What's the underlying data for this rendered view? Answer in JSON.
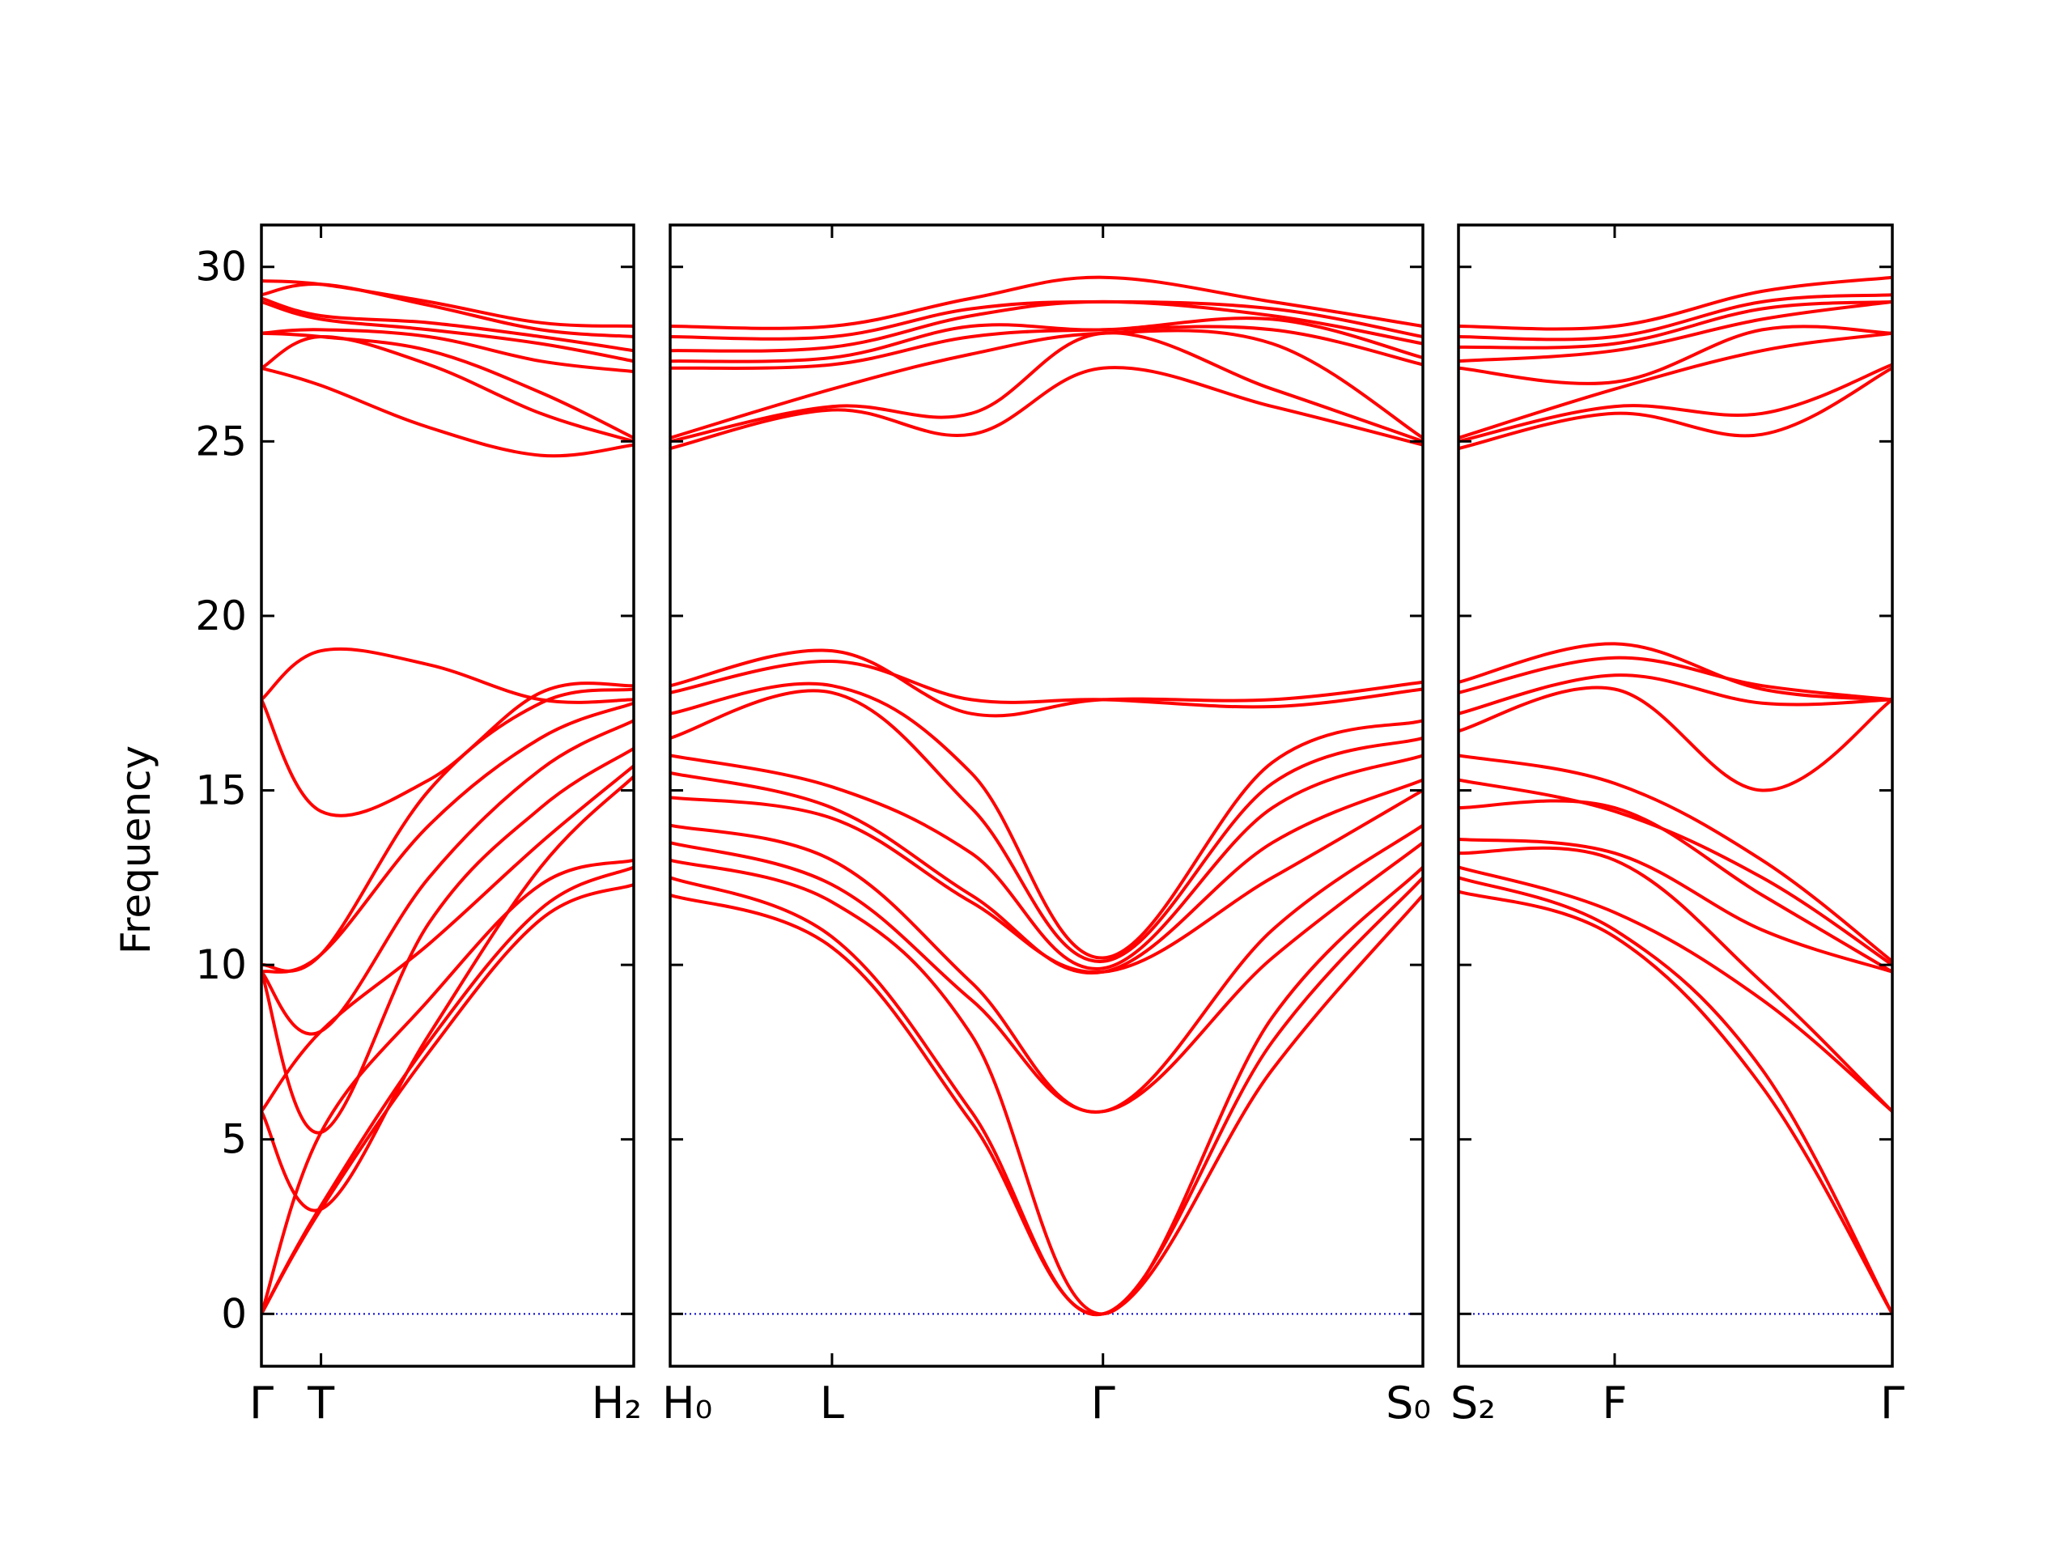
{
  "chart_data": {
    "type": "line",
    "title": "",
    "ylabel": "Frequency",
    "ylim": [
      -1.5,
      31.2
    ],
    "yticks": [
      0,
      5,
      10,
      15,
      20,
      25,
      30
    ],
    "line_color": "#ff0000",
    "zero_line_color": "#0000cc",
    "panels": [
      {
        "id": "p1",
        "xrange": [
          0,
          1
        ],
        "ticks": [
          {
            "x": 0,
            "label": "Γ"
          },
          {
            "x": 0.16,
            "label": "T"
          },
          {
            "x": 1,
            "label": "H₂"
          }
        ],
        "series": [
          {
            "x": [
              0,
              0.16,
              0.45,
              0.75,
              1
            ],
            "y": [
              0,
              3.0,
              7.5,
              11.3,
              12.3
            ]
          },
          {
            "x": [
              0,
              0.16,
              0.45,
              0.75,
              1
            ],
            "y": [
              0,
              3.1,
              7.8,
              11.6,
              12.8
            ]
          },
          {
            "x": [
              0,
              0.16,
              0.45,
              0.75,
              1
            ],
            "y": [
              0,
              5.2,
              9.0,
              12.3,
              13.0
            ]
          },
          {
            "x": [
              0,
              0.16,
              0.45,
              0.75,
              1
            ],
            "y": [
              5.8,
              3.0,
              8.0,
              12.8,
              15.4
            ]
          },
          {
            "x": [
              0,
              0.16,
              0.45,
              0.75,
              1
            ],
            "y": [
              5.8,
              8.1,
              10.6,
              13.5,
              15.7
            ]
          },
          {
            "x": [
              0,
              0.16,
              0.45,
              0.75,
              1
            ],
            "y": [
              9.8,
              5.2,
              11.2,
              14.5,
              16.2
            ]
          },
          {
            "x": [
              0,
              0.16,
              0.45,
              0.75,
              1
            ],
            "y": [
              9.8,
              8.1,
              12.5,
              15.6,
              17.0
            ]
          },
          {
            "x": [
              0,
              0.16,
              0.45,
              0.75,
              1
            ],
            "y": [
              9.8,
              10.3,
              14.0,
              16.5,
              17.5
            ]
          },
          {
            "x": [
              0,
              0.16,
              0.45,
              0.75,
              1
            ],
            "y": [
              10.0,
              10.3,
              15.0,
              17.5,
              17.9
            ]
          },
          {
            "x": [
              0,
              0.16,
              0.45,
              0.75,
              1
            ],
            "y": [
              17.6,
              14.4,
              15.3,
              17.8,
              18.0
            ]
          },
          {
            "x": [
              0,
              0.16,
              0.45,
              0.75,
              1
            ],
            "y": [
              17.6,
              19.0,
              18.6,
              17.6,
              17.6
            ]
          },
          {
            "x": [
              0,
              0.16,
              0.45,
              0.75,
              1
            ],
            "y": [
              27.1,
              26.6,
              25.4,
              24.6,
              24.9
            ]
          },
          {
            "x": [
              0,
              0.16,
              0.45,
              0.75,
              1
            ],
            "y": [
              27.1,
              28.0,
              27.2,
              25.8,
              25.0
            ]
          },
          {
            "x": [
              0,
              0.16,
              0.45,
              0.75,
              1
            ],
            "y": [
              28.1,
              28.0,
              27.6,
              26.4,
              25.1
            ]
          },
          {
            "x": [
              0,
              0.16,
              0.45,
              0.75,
              1
            ],
            "y": [
              28.1,
              28.2,
              28.0,
              27.3,
              27.0
            ]
          },
          {
            "x": [
              0,
              0.16,
              0.45,
              0.75,
              1
            ],
            "y": [
              29.0,
              28.5,
              28.2,
              27.8,
              27.3
            ]
          },
          {
            "x": [
              0,
              0.16,
              0.45,
              0.75,
              1
            ],
            "y": [
              29.1,
              28.6,
              28.4,
              28.0,
              27.6
            ]
          },
          {
            "x": [
              0,
              0.16,
              0.45,
              0.75,
              1
            ],
            "y": [
              29.2,
              29.5,
              28.9,
              28.2,
              28.0
            ]
          },
          {
            "x": [
              0,
              0.16,
              0.45,
              0.75,
              1
            ],
            "y": [
              29.6,
              29.5,
              29.0,
              28.4,
              28.3
            ]
          }
        ]
      },
      {
        "id": "p2",
        "xrange": [
          0,
          1
        ],
        "ticks": [
          {
            "x": 0,
            "label": "H₀"
          },
          {
            "x": 0.215,
            "label": "L"
          },
          {
            "x": 0.575,
            "label": "Γ"
          },
          {
            "x": 1,
            "label": "S₀"
          }
        ],
        "series": [
          {
            "x": [
              0,
              0.215,
              0.4,
              0.575,
              0.8,
              1
            ],
            "y": [
              12.0,
              10.5,
              5.5,
              0,
              7.0,
              12.0
            ]
          },
          {
            "x": [
              0,
              0.215,
              0.4,
              0.575,
              0.8,
              1
            ],
            "y": [
              12.5,
              10.8,
              5.8,
              0,
              7.8,
              12.5
            ]
          },
          {
            "x": [
              0,
              0.215,
              0.4,
              0.575,
              0.8,
              1
            ],
            "y": [
              13.0,
              11.8,
              8.0,
              0,
              8.5,
              12.8
            ]
          },
          {
            "x": [
              0,
              0.215,
              0.4,
              0.575,
              0.8,
              1
            ],
            "y": [
              13.5,
              12.3,
              9.0,
              5.8,
              10.2,
              13.5
            ]
          },
          {
            "x": [
              0,
              0.215,
              0.4,
              0.575,
              0.8,
              1
            ],
            "y": [
              14.0,
              13.0,
              9.5,
              5.8,
              11.0,
              14.0
            ]
          },
          {
            "x": [
              0,
              0.215,
              0.4,
              0.575,
              0.8,
              1
            ],
            "y": [
              14.8,
              14.2,
              11.8,
              9.8,
              12.5,
              15.0
            ]
          },
          {
            "x": [
              0,
              0.215,
              0.4,
              0.575,
              0.8,
              1
            ],
            "y": [
              15.5,
              14.5,
              12.0,
              9.8,
              13.5,
              15.3
            ]
          },
          {
            "x": [
              0,
              0.215,
              0.4,
              0.575,
              0.8,
              1
            ],
            "y": [
              16.0,
              15.1,
              13.2,
              9.9,
              14.5,
              16.0
            ]
          },
          {
            "x": [
              0,
              0.215,
              0.4,
              0.575,
              0.8,
              1
            ],
            "y": [
              16.5,
              17.8,
              14.5,
              10.1,
              15.2,
              16.5
            ]
          },
          {
            "x": [
              0,
              0.215,
              0.4,
              0.575,
              0.8,
              1
            ],
            "y": [
              17.2,
              18.0,
              15.5,
              10.2,
              15.8,
              17.0
            ]
          },
          {
            "x": [
              0,
              0.215,
              0.4,
              0.575,
              0.8,
              1
            ],
            "y": [
              17.8,
              18.7,
              17.6,
              17.6,
              17.4,
              17.9
            ]
          },
          {
            "x": [
              0,
              0.215,
              0.4,
              0.575,
              0.8,
              1
            ],
            "y": [
              18.0,
              19.0,
              17.2,
              17.6,
              17.6,
              18.1
            ]
          },
          {
            "x": [
              0,
              0.215,
              0.4,
              0.575,
              0.8,
              1
            ],
            "y": [
              24.8,
              25.9,
              25.2,
              27.1,
              26.0,
              24.9
            ]
          },
          {
            "x": [
              0,
              0.215,
              0.4,
              0.575,
              0.8,
              1
            ],
            "y": [
              25.0,
              26.0,
              25.8,
              28.1,
              26.5,
              25.0
            ]
          },
          {
            "x": [
              0,
              0.215,
              0.4,
              0.575,
              0.8,
              1
            ],
            "y": [
              25.1,
              26.5,
              27.5,
              28.1,
              27.8,
              25.1
            ]
          },
          {
            "x": [
              0,
              0.215,
              0.4,
              0.575,
              0.8,
              1
            ],
            "y": [
              27.1,
              27.2,
              28.0,
              28.2,
              28.2,
              27.2
            ]
          },
          {
            "x": [
              0,
              0.215,
              0.4,
              0.575,
              0.8,
              1
            ],
            "y": [
              27.3,
              27.4,
              28.3,
              28.2,
              28.5,
              27.4
            ]
          },
          {
            "x": [
              0,
              0.215,
              0.4,
              0.575,
              0.8,
              1
            ],
            "y": [
              27.6,
              27.7,
              28.6,
              29.0,
              28.6,
              27.8
            ]
          },
          {
            "x": [
              0,
              0.215,
              0.4,
              0.575,
              0.8,
              1
            ],
            "y": [
              28.0,
              28.0,
              28.8,
              29.0,
              28.8,
              28.0
            ]
          },
          {
            "x": [
              0,
              0.215,
              0.4,
              0.575,
              0.8,
              1
            ],
            "y": [
              28.3,
              28.3,
              29.1,
              29.7,
              29.0,
              28.3
            ]
          }
        ]
      },
      {
        "id": "p3",
        "xrange": [
          0,
          1
        ],
        "ticks": [
          {
            "x": 0,
            "label": "S₂"
          },
          {
            "x": 0.36,
            "label": "F"
          },
          {
            "x": 1,
            "label": "Γ"
          }
        ],
        "series": [
          {
            "x": [
              0,
              0.36,
              0.7,
              1
            ],
            "y": [
              12.1,
              10.8,
              6.5,
              0
            ]
          },
          {
            "x": [
              0,
              0.36,
              0.7,
              1
            ],
            "y": [
              12.5,
              11.0,
              7.0,
              0
            ]
          },
          {
            "x": [
              0,
              0.36,
              0.7,
              1
            ],
            "y": [
              12.8,
              11.5,
              9.0,
              5.8
            ]
          },
          {
            "x": [
              0,
              0.36,
              0.7,
              1
            ],
            "y": [
              13.2,
              13.0,
              9.5,
              5.8
            ]
          },
          {
            "x": [
              0,
              0.36,
              0.7,
              1
            ],
            "y": [
              13.6,
              13.2,
              11.0,
              9.8
            ]
          },
          {
            "x": [
              0,
              0.36,
              0.7,
              1
            ],
            "y": [
              14.5,
              14.5,
              12.0,
              9.8
            ]
          },
          {
            "x": [
              0,
              0.36,
              0.7,
              1
            ],
            "y": [
              15.3,
              14.4,
              12.5,
              10.0
            ]
          },
          {
            "x": [
              0,
              0.36,
              0.7,
              1
            ],
            "y": [
              16.0,
              15.2,
              13.0,
              10.1
            ]
          },
          {
            "x": [
              0,
              0.36,
              0.7,
              1
            ],
            "y": [
              16.7,
              17.9,
              15.0,
              17.6
            ]
          },
          {
            "x": [
              0,
              0.36,
              0.7,
              1
            ],
            "y": [
              17.2,
              18.3,
              17.5,
              17.6
            ]
          },
          {
            "x": [
              0,
              0.36,
              0.7,
              1
            ],
            "y": [
              17.8,
              18.8,
              18.0,
              17.6
            ]
          },
          {
            "x": [
              0,
              0.36,
              0.7,
              1
            ],
            "y": [
              18.1,
              19.2,
              17.9,
              17.6
            ]
          },
          {
            "x": [
              0,
              0.36,
              0.7,
              1
            ],
            "y": [
              24.8,
              25.8,
              25.2,
              27.1
            ]
          },
          {
            "x": [
              0,
              0.36,
              0.7,
              1
            ],
            "y": [
              25.0,
              26.0,
              25.8,
              27.2
            ]
          },
          {
            "x": [
              0,
              0.36,
              0.7,
              1
            ],
            "y": [
              25.1,
              26.5,
              27.6,
              28.1
            ]
          },
          {
            "x": [
              0,
              0.36,
              0.7,
              1
            ],
            "y": [
              27.1,
              26.7,
              28.2,
              28.1
            ]
          },
          {
            "x": [
              0,
              0.36,
              0.7,
              1
            ],
            "y": [
              27.3,
              27.6,
              28.5,
              29.0
            ]
          },
          {
            "x": [
              0,
              0.36,
              0.7,
              1
            ],
            "y": [
              27.7,
              27.8,
              28.8,
              29.0
            ]
          },
          {
            "x": [
              0,
              0.36,
              0.7,
              1
            ],
            "y": [
              28.0,
              28.0,
              29.0,
              29.2
            ]
          },
          {
            "x": [
              0,
              0.36,
              0.7,
              1
            ],
            "y": [
              28.3,
              28.3,
              29.3,
              29.7
            ]
          }
        ]
      }
    ]
  }
}
